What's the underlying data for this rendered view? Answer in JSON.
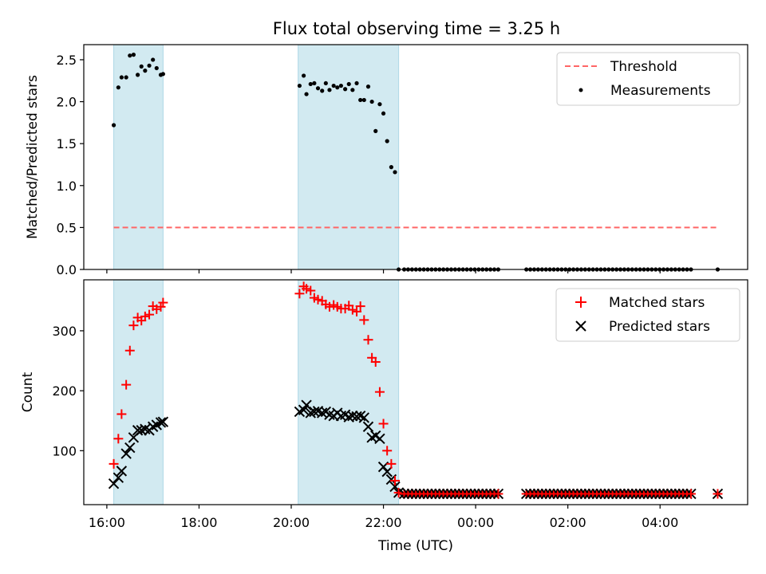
{
  "chart_data": [
    {
      "type": "scatter",
      "title": "Flux total observing time = 3.25 h",
      "xlabel": "",
      "ylabel": "Matched/Predicted stars",
      "ylim": [
        0,
        2.68
      ],
      "xlim_hours": [
        15.5,
        29.9
      ],
      "yticks": [
        0.0,
        0.5,
        1.0,
        1.5,
        2.0,
        2.5
      ],
      "ytick_labels": [
        "0.0",
        "0.5",
        "1.0",
        "1.5",
        "2.0",
        "2.5"
      ],
      "shaded_intervals": [
        [
          16.15,
          17.22
        ],
        [
          20.15,
          22.33
        ]
      ],
      "shade_color": "#add8e6",
      "threshold": {
        "name": "Threshold",
        "value": 0.5,
        "x_range": [
          16.15,
          29.25
        ],
        "color": "#ff6666"
      },
      "series": [
        {
          "name": "Measurements",
          "color": "#000000",
          "x": [
            16.15,
            16.25,
            16.32,
            16.42,
            16.5,
            16.58,
            16.67,
            16.75,
            16.83,
            16.92,
            17.0,
            17.08,
            17.17,
            17.22,
            20.18,
            20.27,
            20.33,
            20.42,
            20.5,
            20.58,
            20.67,
            20.75,
            20.83,
            20.92,
            21.0,
            21.08,
            21.17,
            21.25,
            21.33,
            21.42,
            21.5,
            21.58,
            21.67,
            21.75,
            21.83,
            21.92,
            22.0,
            22.08,
            22.17,
            22.25,
            22.33
          ],
          "y": [
            1.72,
            2.17,
            2.29,
            2.29,
            2.55,
            2.56,
            2.32,
            2.42,
            2.37,
            2.43,
            2.5,
            2.4,
            2.32,
            2.33,
            2.19,
            2.31,
            2.09,
            2.21,
            2.22,
            2.16,
            2.13,
            2.22,
            2.14,
            2.19,
            2.17,
            2.19,
            2.15,
            2.21,
            2.14,
            2.22,
            2.02,
            2.02,
            2.18,
            2.0,
            1.65,
            1.97,
            1.86,
            1.53,
            1.22,
            1.16,
            0.0
          ],
          "zero_points_x": [
            22.5,
            23.5,
            24.5,
            25.1,
            26.0,
            27.0,
            28.0,
            29.0,
            29.25
          ]
        }
      ]
    },
    {
      "type": "scatter",
      "title": "",
      "xlabel": "Time (UTC)",
      "ylabel": "Count",
      "ylim": [
        10,
        385
      ],
      "yticks": [
        100,
        200,
        300
      ],
      "ytick_labels": [
        "100",
        "200",
        "300"
      ],
      "xticks_hours": [
        16,
        18,
        20,
        22,
        24,
        26,
        28
      ],
      "xtick_labels": [
        "16:00",
        "18:00",
        "20:00",
        "22:00",
        "00:00",
        "02:00",
        "04:00"
      ],
      "series": [
        {
          "name": "Matched stars",
          "color": "#ff0000",
          "marker": "+",
          "x": [
            16.15,
            16.25,
            16.32,
            16.42,
            16.5,
            16.58,
            16.67,
            16.75,
            16.83,
            16.92,
            17.0,
            17.08,
            17.17,
            17.22,
            20.18,
            20.27,
            20.33,
            20.42,
            20.5,
            20.58,
            20.67,
            20.75,
            20.83,
            20.92,
            21.0,
            21.08,
            21.17,
            21.25,
            21.33,
            21.42,
            21.5,
            21.58,
            21.67,
            21.75,
            21.83,
            21.92,
            22.0,
            22.08,
            22.17,
            22.25,
            22.33
          ],
          "y": [
            78,
            120,
            161,
            210,
            267,
            309,
            322,
            317,
            324,
            327,
            341,
            336,
            340,
            347,
            362,
            374,
            370,
            367,
            355,
            352,
            350,
            344,
            340,
            343,
            340,
            337,
            337,
            342,
            335,
            332,
            341,
            318,
            285,
            255,
            248,
            198,
            145,
            100,
            78,
            50,
            30
          ]
        },
        {
          "name": "Predicted stars",
          "color": "#000000",
          "marker": "x",
          "x": [
            16.15,
            16.25,
            16.32,
            16.42,
            16.5,
            16.58,
            16.67,
            16.75,
            16.83,
            16.92,
            17.0,
            17.08,
            17.17,
            17.22,
            20.18,
            20.27,
            20.33,
            20.42,
            20.5,
            20.58,
            20.67,
            20.75,
            20.83,
            20.92,
            21.0,
            21.08,
            21.17,
            21.25,
            21.33,
            21.42,
            21.5,
            21.58,
            21.67,
            21.75,
            21.83,
            21.92,
            22.0,
            22.08,
            22.17,
            22.25,
            22.33
          ],
          "y": [
            45,
            55,
            66,
            95,
            105,
            122,
            134,
            134,
            136,
            134,
            140,
            143,
            147,
            148,
            165,
            168,
            176,
            163,
            165,
            166,
            163,
            165,
            160,
            158,
            163,
            158,
            160,
            156,
            158,
            157,
            158,
            155,
            140,
            122,
            125,
            120,
            73,
            65,
            52,
            40,
            30
          ]
        }
      ],
      "baseline_points": {
        "value": 28,
        "x_range": [
          22.4,
          24.5
        ],
        "x_range2": [
          25.1,
          29.25
        ]
      }
    }
  ],
  "legends": {
    "top": [
      "Threshold",
      "Measurements"
    ],
    "bottom": [
      "Matched stars",
      "Predicted stars"
    ]
  }
}
